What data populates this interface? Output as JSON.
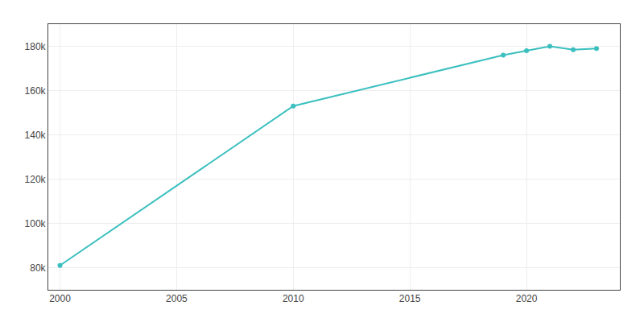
{
  "chart_data": {
    "type": "line",
    "x": [
      2000,
      2010,
      2019,
      2020,
      2021,
      2022,
      2023
    ],
    "values": [
      81000,
      153000,
      176000,
      178000,
      180000,
      178500,
      179000
    ],
    "color": "#3bbfbf",
    "marker": "circle",
    "xlim": [
      1999.5,
      2024
    ],
    "ylim": [
      70000,
      190000
    ],
    "xticks": [
      2000,
      2005,
      2010,
      2015,
      2020
    ],
    "yticks": [
      {
        "value": 80000,
        "label": "80k"
      },
      {
        "value": 100000,
        "label": "100k"
      },
      {
        "value": 120000,
        "label": "120k"
      },
      {
        "value": 140000,
        "label": "140k"
      },
      {
        "value": 160000,
        "label": "160k"
      },
      {
        "value": 180000,
        "label": "180k"
      }
    ],
    "grid": true
  }
}
